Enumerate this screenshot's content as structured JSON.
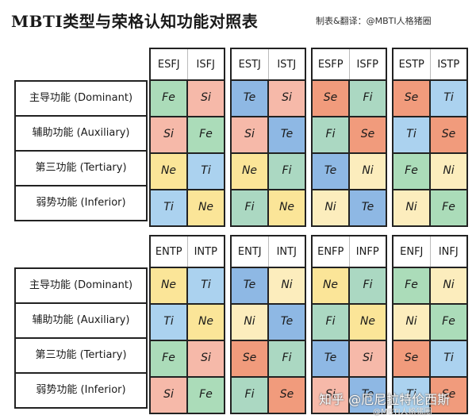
{
  "title": "MBTI类型与荣格认知功能对照表",
  "credit": "制表&翻译：@MBTI人格猪圈",
  "row_labels": [
    "主导功能 (Dominant)",
    "辅助功能 (Auxiliary)",
    "第三功能 (Tertiary)",
    "弱势功能 (Inferior)"
  ],
  "colors": {
    "Fe": "#abdcb9",
    "Fi": "#abd8c2",
    "Si": "#f6b9a9",
    "Se": "#f19b7c",
    "Te": "#8eb8e4",
    "Ti": "#abd2ef",
    "Ne": "#fbe598",
    "Ni": "#fcedbd"
  },
  "sections": [
    {
      "groups": [
        {
          "types": [
            "ESFJ",
            "ISFJ"
          ],
          "rows": [
            [
              "Fe",
              "Si"
            ],
            [
              "Si",
              "Fe"
            ],
            [
              "Ne",
              "Ti"
            ],
            [
              "Ti",
              "Ne"
            ]
          ]
        },
        {
          "types": [
            "ESTJ",
            "ISTJ"
          ],
          "rows": [
            [
              "Te",
              "Si"
            ],
            [
              "Si",
              "Te"
            ],
            [
              "Ne",
              "Fi"
            ],
            [
              "Fi",
              "Ne"
            ]
          ]
        },
        {
          "types": [
            "ESFP",
            "ISFP"
          ],
          "rows": [
            [
              "Se",
              "Fi"
            ],
            [
              "Fi",
              "Se"
            ],
            [
              "Te",
              "Ni"
            ],
            [
              "Ni",
              "Te"
            ]
          ]
        },
        {
          "types": [
            "ESTP",
            "ISTP"
          ],
          "rows": [
            [
              "Se",
              "Ti"
            ],
            [
              "Ti",
              "Se"
            ],
            [
              "Fe",
              "Ni"
            ],
            [
              "Ni",
              "Fe"
            ]
          ]
        }
      ]
    },
    {
      "groups": [
        {
          "types": [
            "ENTP",
            "INTP"
          ],
          "rows": [
            [
              "Ne",
              "Ti"
            ],
            [
              "Ti",
              "Ne"
            ],
            [
              "Fe",
              "Si"
            ],
            [
              "Si",
              "Fe"
            ]
          ]
        },
        {
          "types": [
            "ENTJ",
            "INTJ"
          ],
          "rows": [
            [
              "Te",
              "Ni"
            ],
            [
              "Ni",
              "Te"
            ],
            [
              "Se",
              "Fi"
            ],
            [
              "Fi",
              "Se"
            ]
          ]
        },
        {
          "types": [
            "ENFP",
            "INFP"
          ],
          "rows": [
            [
              "Ne",
              "Fi"
            ],
            [
              "Fi",
              "Ne"
            ],
            [
              "Te",
              "Si"
            ],
            [
              "Si",
              "Te"
            ]
          ]
        },
        {
          "types": [
            "ENFJ",
            "INFJ"
          ],
          "rows": [
            [
              "Fe",
              "Ni"
            ],
            [
              "Ni",
              "Fe"
            ],
            [
              "Se",
              "Ti"
            ],
            [
              "Ti",
              "Se"
            ]
          ]
        }
      ]
    }
  ],
  "watermark": "知乎 @厄尼拉特伦西斯",
  "watermark_sub": "@MBTI人格猪圈"
}
